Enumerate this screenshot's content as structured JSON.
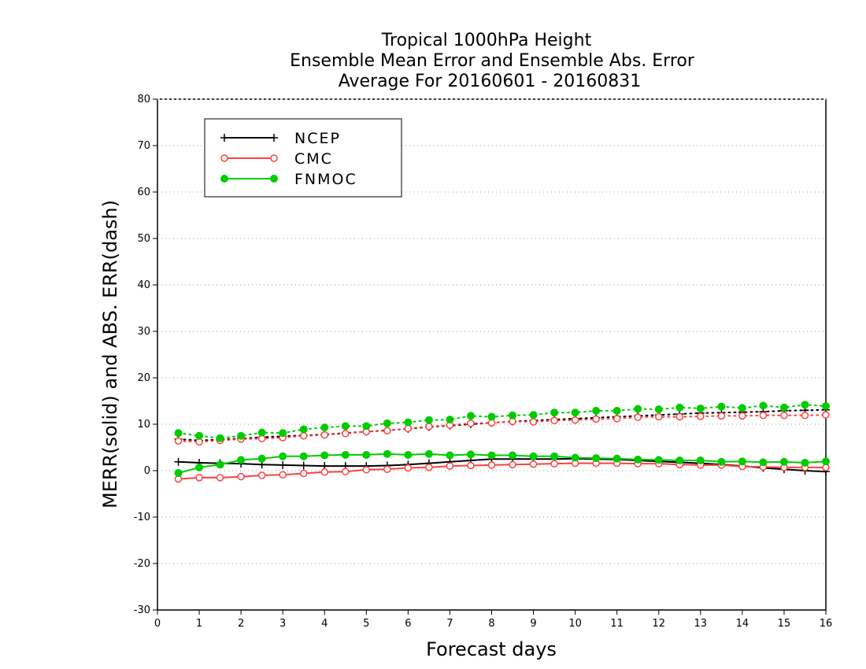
{
  "chart_data": {
    "type": "line",
    "title": [
      "Tropical 1000hPa Height",
      "Ensemble Mean Error and Ensemble Abs. Error",
      "Average For 20160601 - 20160831"
    ],
    "xlabel": "Forecast days",
    "ylabel": "MERR(solid) and ABS. ERR(dash)",
    "xlim": [
      0,
      16
    ],
    "ylim": [
      -30,
      80
    ],
    "xticks": [
      0,
      1,
      2,
      3,
      4,
      5,
      6,
      7,
      8,
      9,
      10,
      11,
      12,
      13,
      14,
      15,
      16
    ],
    "yticks": [
      -30,
      -20,
      -10,
      0,
      10,
      20,
      30,
      40,
      50,
      60,
      70,
      80
    ],
    "grid": "horizontal-dotted",
    "legend_position": "top-left",
    "x": [
      0.5,
      1,
      1.5,
      2,
      2.5,
      3,
      3.5,
      4,
      4.5,
      5,
      5.5,
      6,
      6.5,
      7,
      7.5,
      8,
      8.5,
      9,
      9.5,
      10,
      10.5,
      11,
      11.5,
      12,
      12.5,
      13,
      13.5,
      14,
      14.5,
      15,
      15.5,
      16
    ],
    "series": [
      {
        "name": "NCEP",
        "color": "#000000",
        "marker": "plus",
        "mean_error": [
          1.9,
          1.7,
          1.6,
          1.5,
          1.3,
          1.2,
          1.1,
          1.0,
          1.0,
          1.0,
          1.1,
          1.3,
          1.6,
          1.9,
          2.2,
          2.5,
          2.5,
          2.5,
          2.5,
          2.6,
          2.5,
          2.4,
          2.2,
          2.0,
          1.8,
          1.6,
          1.3,
          1.0,
          0.6,
          0.3,
          0.0,
          -0.2
        ],
        "abs_error": [
          6.8,
          6.5,
          6.7,
          6.9,
          7.2,
          7.4,
          7.6,
          7.8,
          8.1,
          8.4,
          8.7,
          9.0,
          9.4,
          9.7,
          10.0,
          10.3,
          10.6,
          10.8,
          11.0,
          11.2,
          11.4,
          11.6,
          11.8,
          12.0,
          12.2,
          12.4,
          12.5,
          12.6,
          12.7,
          12.9,
          13.0,
          13.1
        ]
      },
      {
        "name": "CMC",
        "color": "#ff4040",
        "marker": "open-circle",
        "mean_error": [
          -1.8,
          -1.5,
          -1.5,
          -1.3,
          -1.0,
          -0.9,
          -0.6,
          -0.3,
          -0.2,
          0.2,
          0.3,
          0.6,
          0.7,
          1.0,
          1.1,
          1.2,
          1.3,
          1.4,
          1.5,
          1.6,
          1.6,
          1.6,
          1.5,
          1.5,
          1.3,
          1.2,
          1.2,
          0.9,
          0.8,
          0.7,
          0.7,
          0.7
        ],
        "abs_error": [
          6.4,
          6.2,
          6.5,
          6.8,
          6.9,
          7.1,
          7.5,
          7.7,
          8.0,
          8.4,
          8.6,
          9.1,
          9.5,
          9.8,
          10.2,
          10.3,
          10.6,
          10.5,
          10.8,
          10.9,
          11.1,
          11.2,
          11.5,
          11.6,
          11.6,
          11.7,
          11.8,
          11.8,
          11.9,
          11.9,
          11.9,
          12.0
        ]
      },
      {
        "name": "FNMOC",
        "color": "#00cc00",
        "marker": "filled-circle",
        "mean_error": [
          -0.5,
          0.7,
          1.3,
          2.3,
          2.6,
          3.1,
          3.1,
          3.3,
          3.4,
          3.4,
          3.6,
          3.4,
          3.6,
          3.3,
          3.5,
          3.3,
          3.3,
          3.1,
          3.1,
          2.8,
          2.7,
          2.6,
          2.4,
          2.3,
          2.2,
          2.2,
          1.9,
          2.0,
          1.8,
          1.9,
          1.7,
          2.0
        ],
        "abs_error": [
          8.1,
          7.5,
          7.0,
          7.5,
          8.2,
          8.1,
          8.9,
          9.3,
          9.6,
          9.6,
          10.2,
          10.4,
          10.9,
          11.0,
          11.8,
          11.6,
          11.9,
          12.0,
          12.5,
          12.5,
          12.9,
          12.9,
          13.3,
          13.2,
          13.6,
          13.4,
          13.8,
          13.5,
          14.0,
          13.6,
          14.2,
          13.9
        ]
      }
    ]
  }
}
